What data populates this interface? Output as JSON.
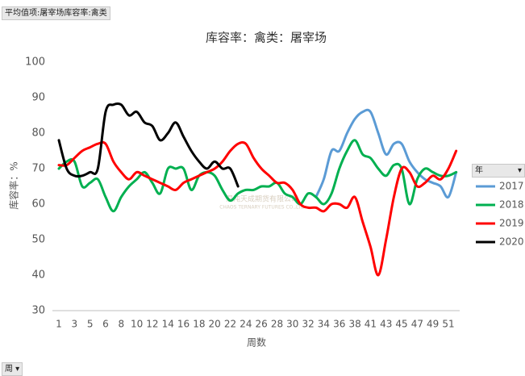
{
  "field_button": "平均值项:屠宰场库容率:禽类",
  "axis_field_button": "周",
  "legend_field_button": "年",
  "watermark": {
    "name": "混沌天成期货有限公司",
    "english": "CHAOS TERNARY FUTURES CO.,LTD"
  },
  "chart_data": {
    "type": "line",
    "title": "库容率：禽类：屠宰场",
    "y_label": "库容率：%",
    "x_label": "周数",
    "categories": [
      "1",
      null,
      "3",
      null,
      "5",
      null,
      "6",
      null,
      "8",
      null,
      "10",
      null,
      "12",
      null,
      "14",
      null,
      "16",
      null,
      "18",
      null,
      "20",
      null,
      "22",
      null,
      "24",
      null,
      "26",
      null,
      "28",
      null,
      "30",
      null,
      "32",
      null,
      "34",
      null,
      "36",
      null,
      "38",
      null,
      "41",
      null,
      "43",
      null,
      "45",
      null,
      "47",
      null,
      "49",
      null,
      "51",
      null
    ],
    "ylim": [
      30,
      100
    ],
    "yticks": [
      30,
      40,
      50,
      60,
      70,
      80,
      90,
      100
    ],
    "grid": false,
    "legend": "right",
    "series": [
      {
        "name": "2017",
        "color": "#5b9bd5",
        "values": [
          null,
          null,
          null,
          null,
          null,
          null,
          null,
          null,
          null,
          null,
          null,
          null,
          null,
          null,
          null,
          null,
          null,
          null,
          null,
          null,
          null,
          null,
          null,
          null,
          null,
          null,
          null,
          null,
          null,
          null,
          null,
          null,
          null,
          62,
          67,
          75,
          75,
          80,
          84,
          86,
          86,
          80,
          74,
          77,
          77,
          72,
          69,
          67,
          66,
          65,
          62,
          69
        ]
      },
      {
        "name": "2018",
        "color": "#00b050",
        "values": [
          70,
          72,
          72,
          65,
          66,
          67,
          62,
          58,
          62,
          65,
          67,
          69,
          66,
          63,
          70,
          70,
          70,
          64,
          68,
          69,
          68,
          64,
          61,
          63,
          64,
          64,
          65,
          65,
          66,
          63,
          62,
          60,
          63,
          62,
          60,
          63,
          70,
          75,
          78,
          74,
          73,
          70,
          68,
          71,
          70,
          60,
          67,
          70,
          69,
          68,
          68,
          69
        ]
      },
      {
        "name": "2019",
        "color": "#ff0000",
        "values": [
          71,
          71,
          73,
          75,
          76,
          77,
          77,
          72,
          69,
          67,
          69,
          68,
          67,
          66,
          65,
          64,
          66,
          67,
          68,
          69,
          70,
          72,
          75,
          77,
          77,
          73,
          70,
          68,
          66,
          66,
          64,
          60,
          59,
          59,
          58,
          60,
          60,
          59,
          62,
          55,
          48,
          40,
          50,
          62,
          70,
          69,
          65,
          66,
          68,
          67,
          70,
          75
        ]
      },
      {
        "name": "2020",
        "color": "#000000",
        "values": [
          78,
          70,
          68,
          68,
          69,
          70,
          86,
          88,
          88,
          85,
          86,
          83,
          82,
          78,
          80,
          83,
          79,
          75,
          72,
          70,
          72,
          70,
          70,
          65,
          null,
          null,
          null,
          null,
          null,
          null,
          null,
          null,
          null,
          null,
          null,
          null,
          null,
          null,
          null,
          null,
          null,
          null,
          null,
          null,
          null,
          null,
          null,
          null,
          null,
          null,
          null,
          null
        ]
      }
    ]
  }
}
